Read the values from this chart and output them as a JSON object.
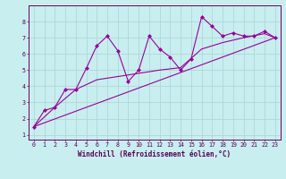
{
  "xlabel": "Windchill (Refroidissement éolien,°C)",
  "bg_color": "#c8eef0",
  "grid_color": "#b0d8d8",
  "line_color": "#990099",
  "marker_color": "#990099",
  "xlim": [
    -0.5,
    23.5
  ],
  "ylim": [
    0.7,
    9.0
  ],
  "xticks": [
    0,
    1,
    2,
    3,
    4,
    5,
    6,
    7,
    8,
    9,
    10,
    11,
    12,
    13,
    14,
    15,
    16,
    17,
    18,
    19,
    20,
    21,
    22,
    23
  ],
  "yticks": [
    1,
    2,
    3,
    4,
    5,
    6,
    7,
    8
  ],
  "series1_x": [
    0,
    1,
    2,
    3,
    4,
    5,
    6,
    7,
    8,
    9,
    10,
    11,
    12,
    13,
    14,
    15,
    16,
    17,
    18,
    19,
    20,
    21,
    22,
    23
  ],
  "series1_y": [
    1.5,
    2.5,
    2.7,
    3.8,
    3.8,
    5.1,
    6.5,
    7.1,
    6.2,
    4.3,
    5.0,
    7.1,
    6.3,
    5.8,
    5.0,
    5.7,
    8.3,
    7.7,
    7.1,
    7.3,
    7.1,
    7.1,
    7.4,
    7.0
  ],
  "series2_x": [
    0,
    2,
    4,
    6,
    8,
    10,
    12,
    14,
    16,
    18,
    20,
    22,
    23
  ],
  "series2_y": [
    1.5,
    2.7,
    3.8,
    4.4,
    4.6,
    4.8,
    5.0,
    5.15,
    6.3,
    6.7,
    7.0,
    7.25,
    7.0
  ],
  "series3_x": [
    0,
    23
  ],
  "series3_y": [
    1.5,
    7.0
  ],
  "label_fontsize": 5.5,
  "tick_fontsize": 4.8
}
